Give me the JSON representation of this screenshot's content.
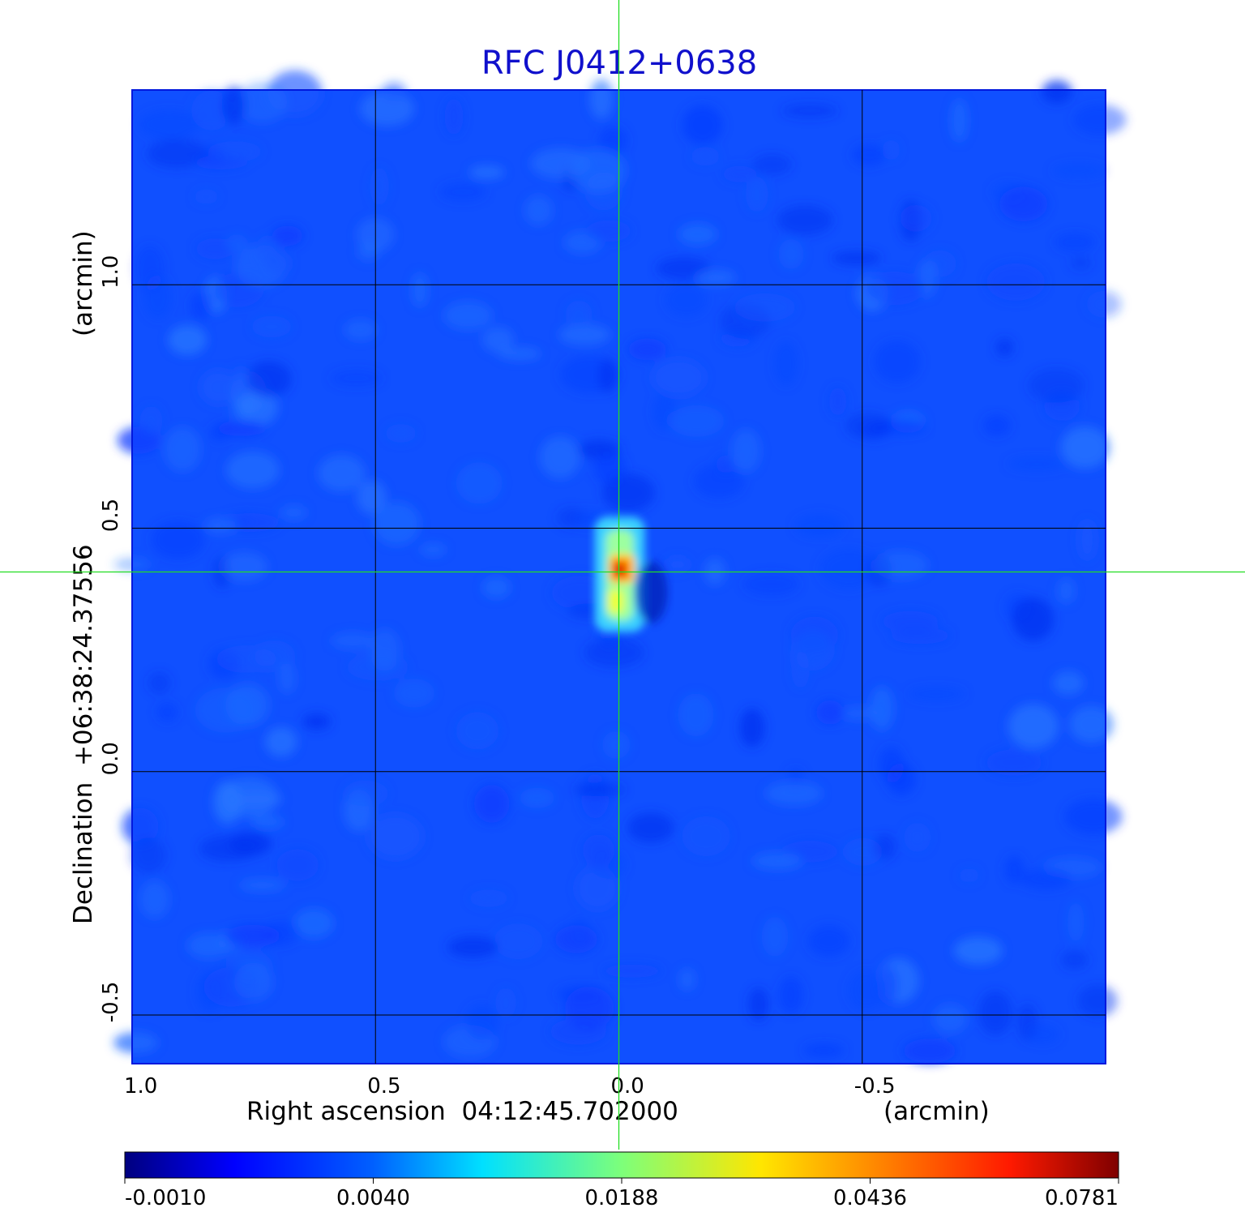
{
  "chart_data": {
    "type": "heatmap",
    "title": "RFC J0412+0638",
    "x_axis": {
      "label": "Right ascension  04:12:45.702000",
      "unit_label": "(arcmin)",
      "ticks": [
        1.0,
        0.5,
        0.0,
        -0.5
      ],
      "tick_labels": [
        "1.0",
        "0.5",
        "0.0",
        "-0.5"
      ],
      "range": [
        1.0,
        -1.0
      ]
    },
    "y_axis": {
      "label": "Declination  +06:38:24.37556",
      "unit_label": "(arcmin)",
      "ticks": [
        1.0,
        0.5,
        0.0,
        -0.5
      ],
      "tick_labels": [
        "1.0",
        "0.5",
        "0.0",
        "-0.5"
      ],
      "range": [
        -0.6,
        1.4
      ]
    },
    "grid": true,
    "colormap": "jet",
    "colorbar": {
      "ticks": [
        "-0.0010",
        "0.0040",
        "0.0188",
        "0.0436",
        "0.0781"
      ],
      "range": [
        -0.001,
        0.0781
      ]
    },
    "source_peak": {
      "x": 0.0,
      "y": 0.41,
      "value": 0.0781
    },
    "crosshair": {
      "x": 0.0,
      "y": 0.41,
      "color": "#22dd22"
    }
  }
}
